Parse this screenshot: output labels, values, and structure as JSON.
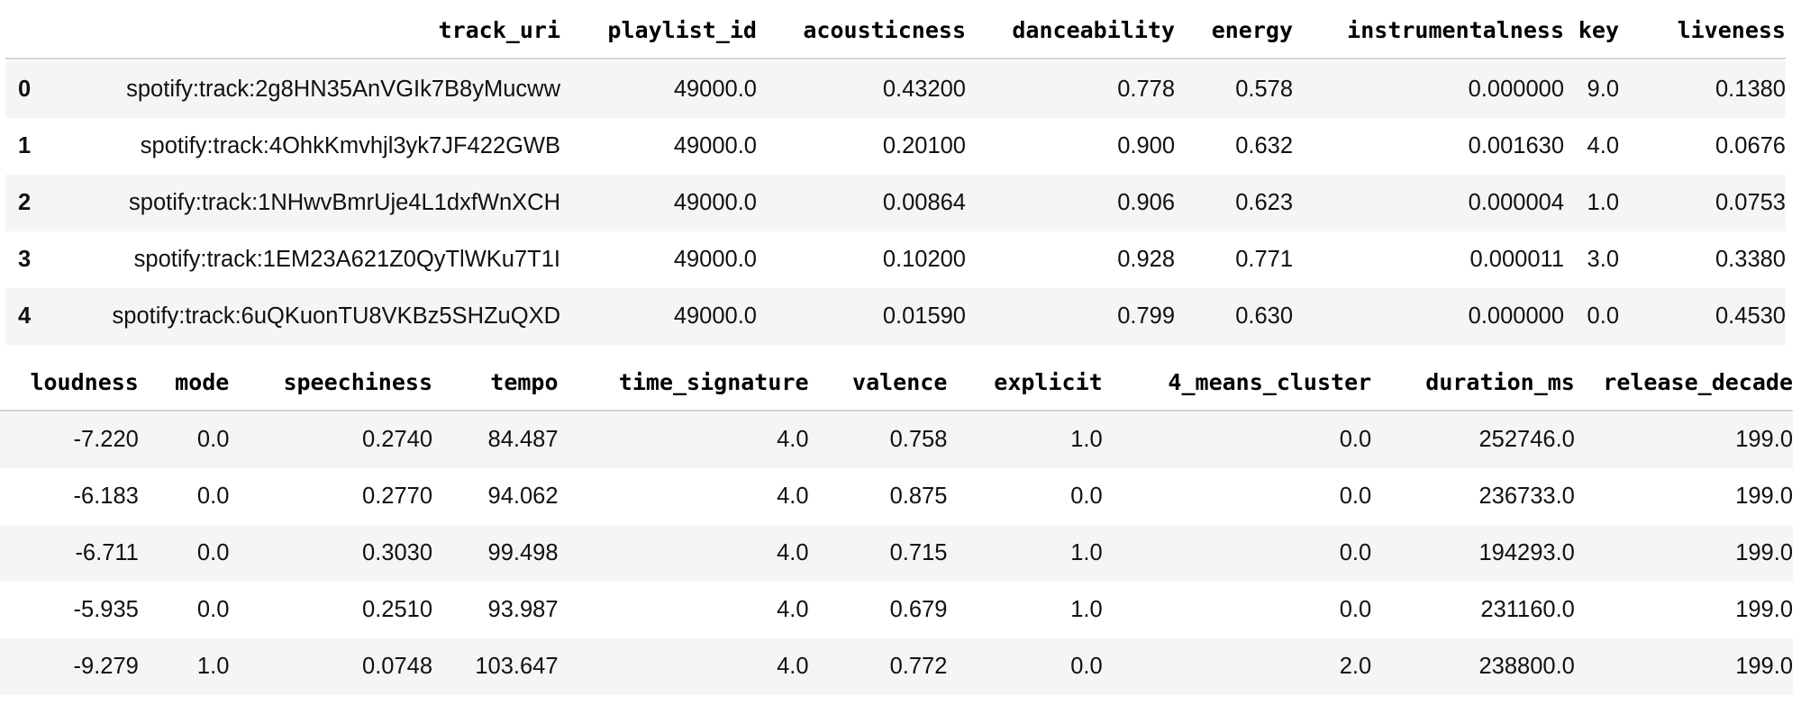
{
  "table_top": {
    "columns": [
      "",
      "track_uri",
      "playlist_id",
      "acousticness",
      "danceability",
      "energy",
      "instrumentalness",
      "key",
      "liveness"
    ],
    "rows": [
      [
        "0",
        "spotify:track:2g8HN35AnVGIk7B8yMucww",
        "49000.0",
        "0.43200",
        "0.778",
        "0.578",
        "0.000000",
        "9.0",
        "0.1380"
      ],
      [
        "1",
        "spotify:track:4OhkKmvhjl3yk7JF422GWB",
        "49000.0",
        "0.20100",
        "0.900",
        "0.632",
        "0.001630",
        "4.0",
        "0.0676"
      ],
      [
        "2",
        "spotify:track:1NHwvBmrUje4L1dxfWnXCH",
        "49000.0",
        "0.00864",
        "0.906",
        "0.623",
        "0.000004",
        "1.0",
        "0.0753"
      ],
      [
        "3",
        "spotify:track:1EM23A621Z0QyTlWKu7T1I",
        "49000.0",
        "0.10200",
        "0.928",
        "0.771",
        "0.000011",
        "3.0",
        "0.3380"
      ],
      [
        "4",
        "spotify:track:6uQKuonTU8VKBz5SHZuQXD",
        "49000.0",
        "0.01590",
        "0.799",
        "0.630",
        "0.000000",
        "0.0",
        "0.4530"
      ]
    ]
  },
  "table_bottom": {
    "columns": [
      "loudness",
      "mode",
      "speechiness",
      "tempo",
      "time_signature",
      "valence",
      "explicit",
      "4_means_cluster",
      "duration_ms",
      "release_decade"
    ],
    "rows": [
      [
        "-7.220",
        "0.0",
        "0.2740",
        "84.487",
        "4.0",
        "0.758",
        "1.0",
        "0.0",
        "252746.0",
        "199.0"
      ],
      [
        "-6.183",
        "0.0",
        "0.2770",
        "94.062",
        "4.0",
        "0.875",
        "0.0",
        "0.0",
        "236733.0",
        "199.0"
      ],
      [
        "-6.711",
        "0.0",
        "0.3030",
        "99.498",
        "4.0",
        "0.715",
        "1.0",
        "0.0",
        "194293.0",
        "199.0"
      ],
      [
        "-5.935",
        "0.0",
        "0.2510",
        "93.987",
        "4.0",
        "0.679",
        "1.0",
        "0.0",
        "231160.0",
        "199.0"
      ],
      [
        "-9.279",
        "1.0",
        "0.0748",
        "103.647",
        "4.0",
        "0.772",
        "0.0",
        "2.0",
        "238800.0",
        "199.0"
      ]
    ]
  }
}
